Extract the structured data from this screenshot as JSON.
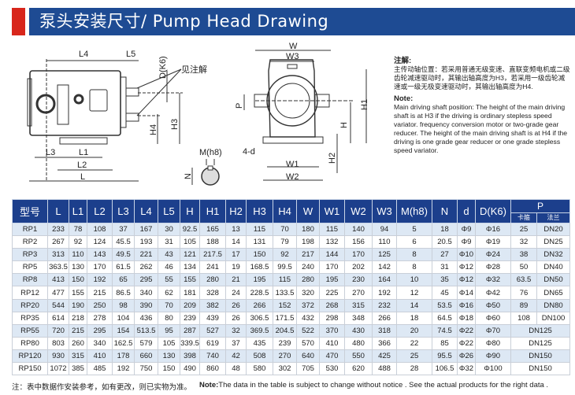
{
  "title": "泵头安装尺寸/ Pump Head Drawing",
  "drawing_labels": {
    "L4": "L4",
    "L5": "L5",
    "DK6": "D(K6)",
    "see_note": "见注解",
    "H3": "H3",
    "H4": "H4",
    "L3": "L3",
    "L1": "L1",
    "L2": "L2",
    "L": "L",
    "Mh8": "M(h8)",
    "N": "N",
    "W": "W",
    "W3": "W3",
    "P": "P",
    "H1": "H1",
    "H": "H",
    "H2": "H2",
    "4d": "4-d",
    "W1": "W1",
    "W2": "W2"
  },
  "notes": {
    "cn_head": "注解:",
    "cn_body": "主传动轴位置：若采用普通无级变速、直联变频电机或二级齿轮减速驱动时，其输出轴高度为H3，若采用一级齿轮减速或一级无极变速驱动时，其输出轴高度为H4.",
    "en_head": "Note:",
    "en_body": "Main driving shaft position:   The height of the main driving shaft is at H3 if the driving is ordinary stepless speed variator.   frequency conversion motor or two-grade gear reducer. The height of the main driving shaft is at H4 if the driving is one grade gear reducer or one grade stepless speed variator."
  },
  "table": {
    "headers": [
      "型号",
      "L",
      "L1",
      "L2",
      "L3",
      "L4",
      "L5",
      "H",
      "H1",
      "H2",
      "H3",
      "H4",
      "W",
      "W1",
      "W2",
      "W3",
      "M(h8)",
      "N",
      "d",
      "D(K6)",
      "P"
    ],
    "p_sub": [
      "卡箍",
      "法兰"
    ],
    "rows": [
      [
        "RP1",
        "233",
        "78",
        "108",
        "37",
        "167",
        "30",
        "92.5",
        "165",
        "13",
        "115",
        "70",
        "180",
        "115",
        "140",
        "94",
        "5",
        "18",
        "Φ9",
        "Φ16",
        "25",
        "DN20"
      ],
      [
        "RP2",
        "267",
        "92",
        "124",
        "45.5",
        "193",
        "31",
        "105",
        "188",
        "14",
        "131",
        "79",
        "198",
        "132",
        "156",
        "110",
        "6",
        "20.5",
        "Φ9",
        "Φ19",
        "32",
        "DN25"
      ],
      [
        "RP3",
        "313",
        "110",
        "143",
        "49.5",
        "221",
        "43",
        "121",
        "217.5",
        "17",
        "150",
        "92",
        "217",
        "144",
        "170",
        "125",
        "8",
        "27",
        "Φ10",
        "Φ24",
        "38",
        "DN32"
      ],
      [
        "RP5",
        "363.5",
        "130",
        "170",
        "61.5",
        "262",
        "46",
        "134",
        "241",
        "19",
        "168.5",
        "99.5",
        "240",
        "170",
        "202",
        "142",
        "8",
        "31",
        "Φ12",
        "Φ28",
        "50",
        "DN40"
      ],
      [
        "RP8",
        "413",
        "150",
        "192",
        "65",
        "295",
        "55",
        "155",
        "280",
        "21",
        "195",
        "115",
        "280",
        "195",
        "230",
        "164",
        "10",
        "35",
        "Φ12",
        "Φ32",
        "63.5",
        "DN50"
      ],
      [
        "RP12",
        "477",
        "155",
        "215",
        "86.5",
        "340",
        "62",
        "181",
        "328",
        "24",
        "228.5",
        "133.5",
        "320",
        "225",
        "270",
        "192",
        "12",
        "45",
        "Φ14",
        "Φ42",
        "76",
        "DN65"
      ],
      [
        "RP20",
        "544",
        "190",
        "250",
        "98",
        "390",
        "70",
        "209",
        "382",
        "26",
        "266",
        "152",
        "372",
        "268",
        "315",
        "232",
        "14",
        "53.5",
        "Φ16",
        "Φ50",
        "89",
        "DN80"
      ],
      [
        "RP35",
        "614",
        "218",
        "278",
        "104",
        "436",
        "80",
        "239",
        "439",
        "26",
        "306.5",
        "171.5",
        "432",
        "298",
        "348",
        "266",
        "18",
        "64.5",
        "Φ18",
        "Φ60",
        "108",
        "DN100"
      ],
      [
        "RP55",
        "720",
        "215",
        "295",
        "154",
        "513.5",
        "95",
        "287",
        "527",
        "32",
        "369.5",
        "204.5",
        "522",
        "370",
        "430",
        "318",
        "20",
        "74.5",
        "Φ22",
        "Φ70",
        "DN125"
      ],
      [
        "RP80",
        "803",
        "260",
        "340",
        "162.5",
        "579",
        "105",
        "339.5",
        "619",
        "37",
        "435",
        "239",
        "570",
        "410",
        "480",
        "366",
        "22",
        "85",
        "Φ22",
        "Φ80",
        "DN125"
      ],
      [
        "RP120",
        "930",
        "315",
        "410",
        "178",
        "660",
        "130",
        "398",
        "740",
        "42",
        "508",
        "270",
        "640",
        "470",
        "550",
        "425",
        "25",
        "95.5",
        "Φ26",
        "Φ90",
        "DN150"
      ],
      [
        "RP150",
        "1072",
        "385",
        "485",
        "192",
        "750",
        "150",
        "490",
        "860",
        "48",
        "580",
        "302",
        "705",
        "530",
        "620",
        "488",
        "28",
        "106.5",
        "Φ32",
        "Φ100",
        "DN150"
      ]
    ]
  },
  "footer": {
    "cn": "注：表中数据作安装参考，如有更改，则已实物为准。",
    "en_bold": "Note:",
    "en": "The data in the table is subject to change without notice . See the actual products for the right data ."
  },
  "colors": {
    "header_bar": "#1e4b93",
    "accent_red": "#d8261c",
    "table_header": "#1c3f8c",
    "row_alt": "#dde8f4"
  }
}
